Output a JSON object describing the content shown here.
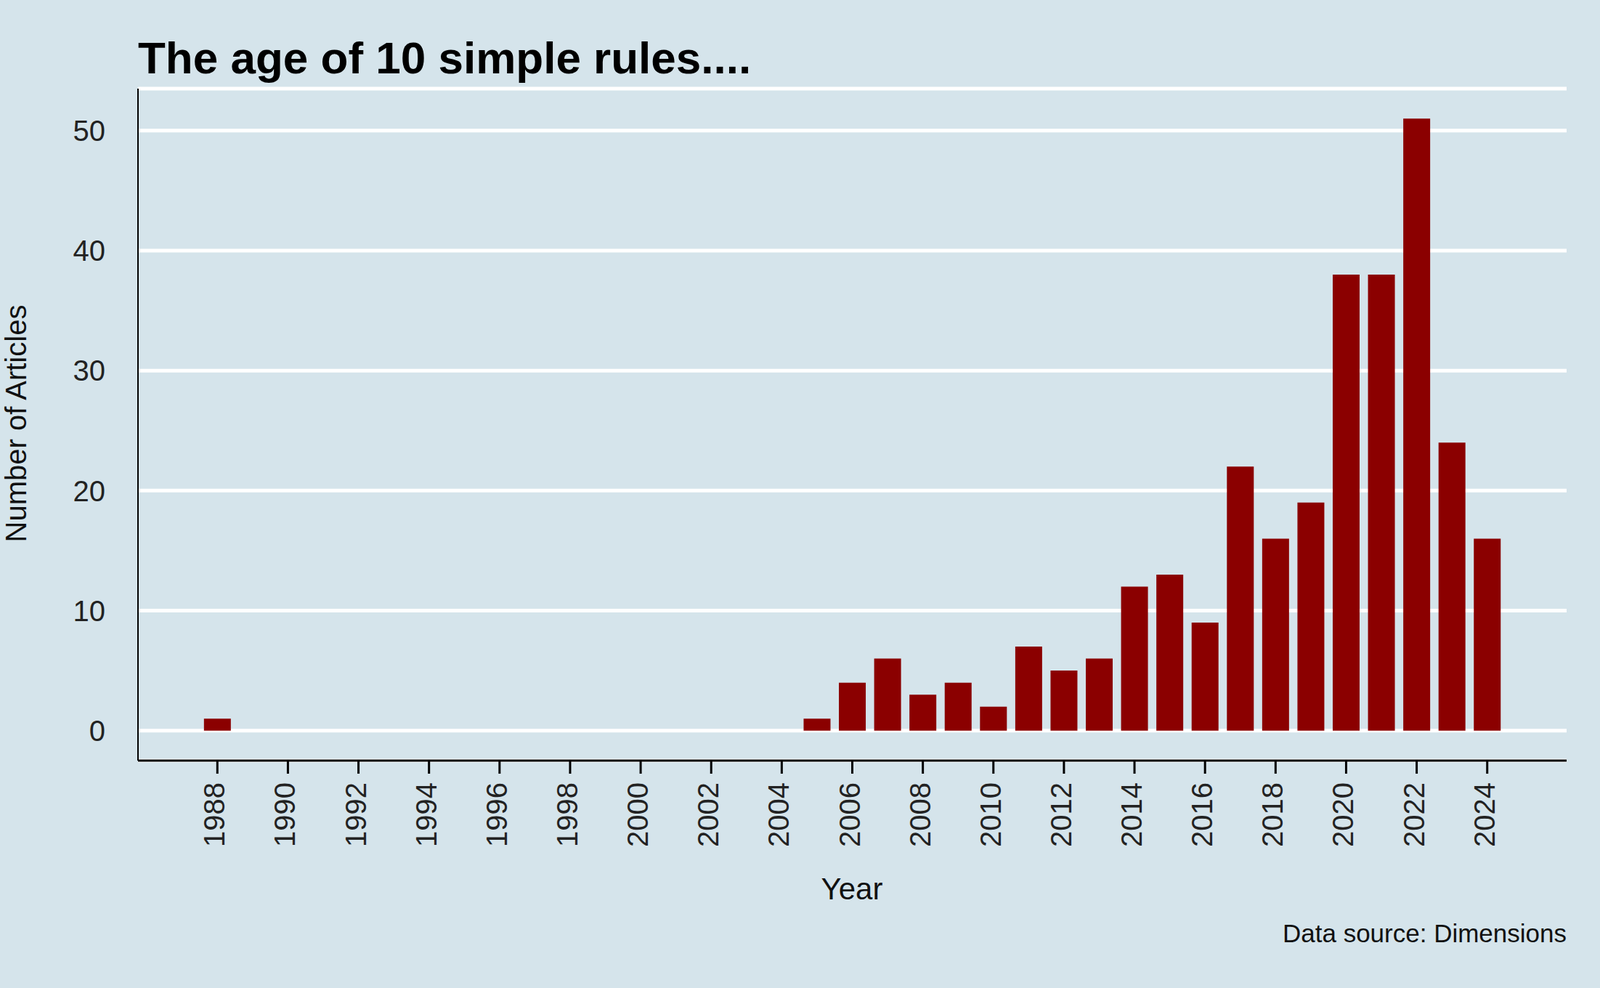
{
  "chart_data": {
    "type": "bar",
    "title": "The age of 10 simple rules....",
    "x_label": "Year",
    "y_label": "Number of Articles",
    "caption": "Data source: Dimensions",
    "categories": [
      "1988",
      null,
      "1990",
      null,
      "1992",
      null,
      "1994",
      null,
      "1996",
      null,
      "1998",
      null,
      "2000",
      null,
      "2002",
      null,
      "2004",
      null,
      "2006",
      null,
      "2008",
      null,
      "2010",
      null,
      "2012",
      null,
      "2014",
      null,
      "2016",
      null,
      "2018",
      null,
      "2020",
      null,
      "2022",
      null,
      "2024"
    ],
    "values": [
      1,
      0,
      0,
      0,
      0,
      0,
      0,
      0,
      0,
      0,
      0,
      0,
      0,
      0,
      0,
      0,
      0,
      1,
      4,
      6,
      3,
      4,
      2,
      7,
      5,
      6,
      12,
      13,
      9,
      22,
      16,
      19,
      38,
      38,
      51,
      24,
      16
    ],
    "color": "#8b0000",
    "ylim": [
      -2.5,
      53.5
    ],
    "yticks": [
      0,
      10,
      20,
      30,
      40,
      50
    ],
    "grid": true
  }
}
